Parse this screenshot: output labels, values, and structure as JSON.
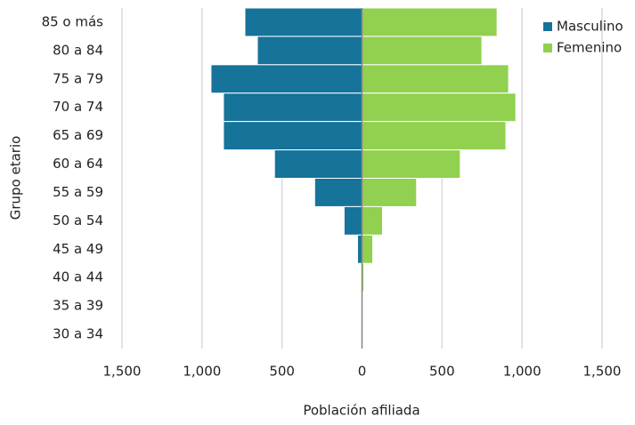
{
  "chart_data": {
    "type": "pyramid",
    "x_label": "Población afiliada",
    "y_label": "Grupo etario",
    "categories": [
      "85 o más",
      "80 a 84",
      "75 a 79",
      "70 a 74",
      "65 a 69",
      "60 a 64",
      "55 a 59",
      "50 a 54",
      "45 a 49",
      "40 a 44",
      "35 a 39",
      "30 a 34"
    ],
    "series": [
      {
        "name": "Masculino",
        "color": "#16739a",
        "values": [
          -732,
          -654,
          -944,
          -866,
          -866,
          -547,
          -296,
          -112,
          -28,
          -5,
          -2,
          -1
        ]
      },
      {
        "name": "Femenino",
        "color": "#92d050",
        "values": [
          844,
          749,
          916,
          961,
          899,
          614,
          341,
          128,
          67,
          11,
          3,
          2
        ]
      }
    ],
    "xlim": [
      -1500,
      1500
    ],
    "xticks": [
      {
        "value": -1500,
        "label": "1,500"
      },
      {
        "value": -1000,
        "label": "1,000"
      },
      {
        "value": -500,
        "label": "500"
      },
      0,
      500,
      {
        "value": 1000,
        "label": "1,000"
      },
      {
        "value": 1500,
        "label": "1,500"
      }
    ],
    "grid": true,
    "legend": "top-right"
  }
}
